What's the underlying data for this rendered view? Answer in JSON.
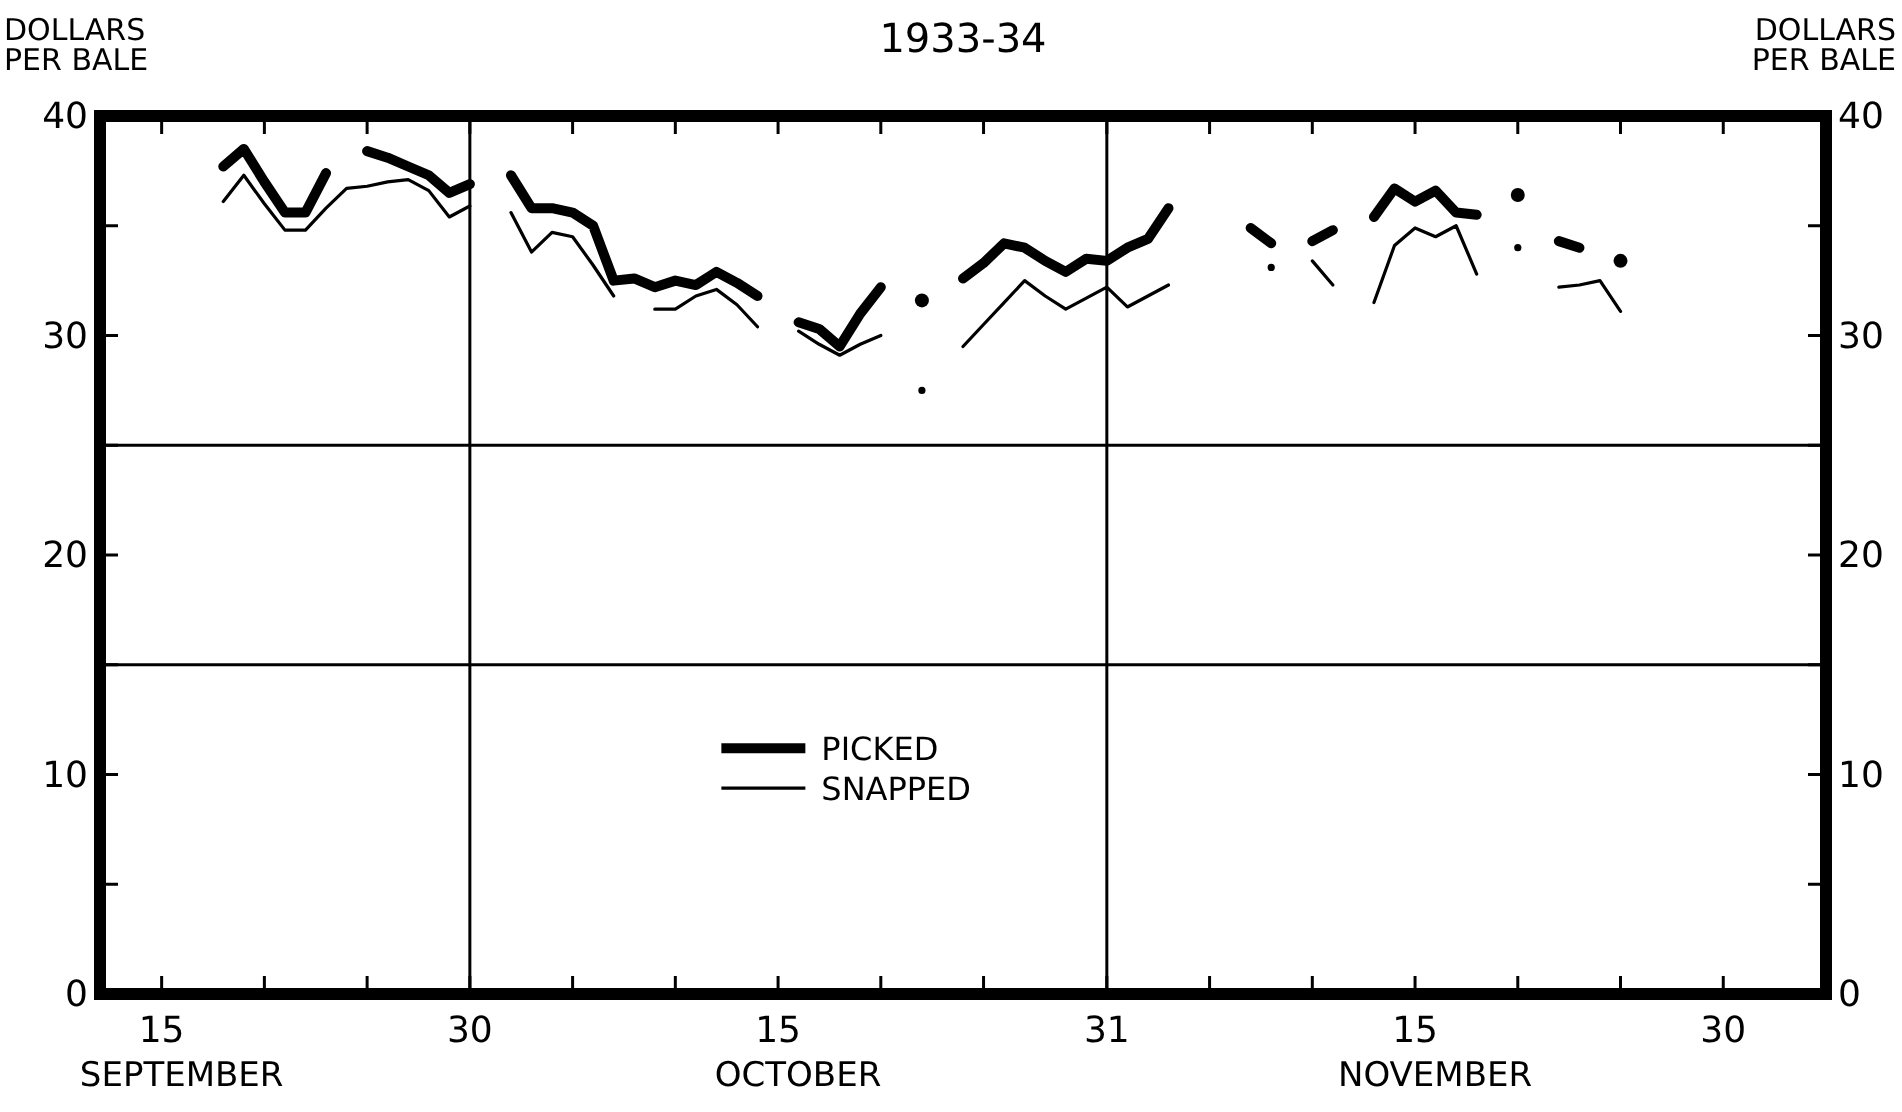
{
  "chart_data": {
    "type": "line",
    "title": "1933-34",
    "ylabel": "DOLLARS\nPER BALE",
    "y2label": "DOLLARS\nPER BALE",
    "annotations": [
      "SEPTEMBER",
      "OCTOBER",
      "NOVEMBER"
    ],
    "xlim": [
      "--09-12",
      "--12-05"
    ],
    "xticks": [
      {
        "value": "--09-15",
        "label": "15"
      },
      {
        "value": "--09-20",
        "label": null
      },
      {
        "value": "--09-25",
        "label": null
      },
      {
        "value": "--09-30",
        "label": "30"
      },
      {
        "value": "--10-05",
        "label": null
      },
      {
        "value": "--10-10",
        "label": null
      },
      {
        "value": "--10-15",
        "label": "15"
      },
      {
        "value": "--10-20",
        "label": null
      },
      {
        "value": "--10-25",
        "label": null
      },
      {
        "value": "--10-31",
        "label": "31"
      },
      {
        "value": "--11-05",
        "label": null
      },
      {
        "value": "--11-10",
        "label": null
      },
      {
        "value": "--11-15",
        "label": "15"
      },
      {
        "value": "--11-20",
        "label": null
      },
      {
        "value": "--11-25",
        "label": null
      },
      {
        "value": "--11-30",
        "label": "30"
      }
    ],
    "ylim": [
      0,
      40
    ],
    "yticks": [
      0,
      {
        "value": 5,
        "label": null
      },
      10,
      {
        "value": 15,
        "label": null
      },
      20,
      {
        "value": 25,
        "label": null
      },
      30,
      {
        "value": 35,
        "label": null
      },
      40
    ],
    "y2lim": [
      0,
      40
    ],
    "y2ticks": [
      0,
      {
        "value": 5,
        "label": null
      },
      10,
      {
        "value": 15,
        "label": null
      },
      20,
      {
        "value": 25,
        "label": null
      },
      30,
      {
        "value": 35,
        "label": null
      },
      40
    ],
    "grid": false,
    "legend": "bottom",
    "line_style": "solid",
    "ref_lines": [
      {
        "axis": "x",
        "value": "--09-30",
        "color": "#000000"
      },
      {
        "axis": "x",
        "value": "--10-31",
        "color": "#000000"
      },
      {
        "axis": "y",
        "value": 15,
        "color": "#000000"
      },
      {
        "axis": "y",
        "value": 25,
        "color": "#000000"
      }
    ],
    "series": [
      {
        "name": "PICKED",
        "color": "#000000",
        "x": [
          "--09-18",
          "--09-19",
          "--09-20",
          "--09-21",
          "--09-22",
          "--09-23",
          "--09-24",
          "--09-25",
          "--09-26",
          "--09-27",
          "--09-28",
          "--09-29",
          "--09-30",
          "--10-01",
          "--10-02",
          "--10-03",
          "--10-04",
          "--10-05",
          "--10-06",
          "--10-07",
          "--10-08",
          "--10-09",
          "--10-10",
          "--10-11",
          "--10-12",
          "--10-13",
          "--10-14",
          "--10-15",
          "--10-16",
          "--10-17",
          "--10-18",
          "--10-19",
          "--10-20",
          "--10-21",
          "--10-22",
          "--10-23",
          "--10-24",
          "--10-25",
          "--10-26",
          "--10-27",
          "--10-28",
          "--10-29",
          "--10-30",
          "--10-31",
          "--11-01",
          "--11-02",
          "--11-03",
          "--11-05",
          "--11-07",
          "--11-08",
          "--11-09",
          "--11-10",
          "--11-11",
          "--11-12",
          "--11-13",
          "--11-14",
          "--11-15",
          "--11-16",
          "--11-17",
          "--11-18",
          "--11-19",
          "--11-20",
          "--11-21",
          "--11-22",
          "--11-23",
          "--11-24",
          "--11-25"
        ],
        "values": [
          37.7,
          38.5,
          37.0,
          35.6,
          35.6,
          37.4,
          null,
          38.4,
          38.1,
          37.7,
          37.3,
          36.5,
          36.9,
          null,
          37.3,
          35.8,
          35.8,
          35.6,
          35.0,
          32.5,
          32.6,
          32.2,
          32.5,
          32.3,
          32.9,
          32.4,
          31.8,
          null,
          30.6,
          30.3,
          29.5,
          31.0,
          32.2,
          null,
          31.6,
          null,
          32.6,
          33.3,
          34.2,
          34.0,
          33.4,
          32.9,
          33.5,
          33.4,
          34.0,
          34.4,
          35.8,
          null,
          34.9,
          34.2,
          null,
          34.3,
          34.8,
          null,
          35.4,
          36.7,
          36.1,
          36.6,
          35.6,
          35.5,
          null,
          36.4,
          null,
          34.3,
          34.0,
          null,
          33.4
        ]
      },
      {
        "name": "SNAPPED",
        "color": "#000000",
        "x": [
          "--09-18",
          "--09-19",
          "--09-20",
          "--09-21",
          "--09-22",
          "--09-23",
          "--09-24",
          "--09-25",
          "--09-26",
          "--09-27",
          "--09-28",
          "--09-29",
          "--09-30",
          "--10-01",
          "--10-02",
          "--10-03",
          "--10-04",
          "--10-05",
          "--10-06",
          "--10-07",
          "--10-08",
          "--10-09",
          "--10-10",
          "--10-11",
          "--10-12",
          "--10-13",
          "--10-14",
          "--10-15",
          "--10-16",
          "--10-17",
          "--10-18",
          "--10-19",
          "--10-20",
          "--10-21",
          "--10-22",
          "--10-23",
          "--10-24",
          "--10-25",
          "--10-26",
          "--10-27",
          "--10-28",
          "--10-29",
          "--10-30",
          "--10-31",
          "--11-01",
          "--11-02",
          "--11-03",
          "--11-05",
          "--11-08",
          "--11-09",
          "--11-10",
          "--11-11",
          "--11-12",
          "--11-13",
          "--11-14",
          "--11-15",
          "--11-16",
          "--11-17",
          "--11-18",
          "--11-19",
          "--11-20",
          "--11-21",
          "--11-22",
          "--11-23",
          "--11-24",
          "--11-25"
        ],
        "values": [
          36.1,
          37.3,
          36.0,
          34.8,
          34.8,
          35.8,
          36.7,
          36.8,
          37.0,
          37.1,
          36.6,
          35.4,
          35.9,
          null,
          35.6,
          33.8,
          34.7,
          34.5,
          33.2,
          31.8,
          null,
          31.2,
          31.2,
          31.8,
          32.1,
          31.4,
          30.4,
          null,
          30.2,
          29.6,
          29.1,
          29.6,
          30.0,
          null,
          27.5,
          null,
          29.5,
          30.5,
          31.5,
          32.5,
          31.8,
          31.2,
          31.7,
          32.2,
          31.3,
          31.8,
          32.3,
          null,
          33.1,
          null,
          33.4,
          32.3,
          null,
          31.5,
          34.1,
          34.9,
          34.5,
          35.0,
          32.8,
          null,
          34.0,
          null,
          32.2,
          32.3,
          32.5,
          31.1
        ]
      }
    ]
  }
}
